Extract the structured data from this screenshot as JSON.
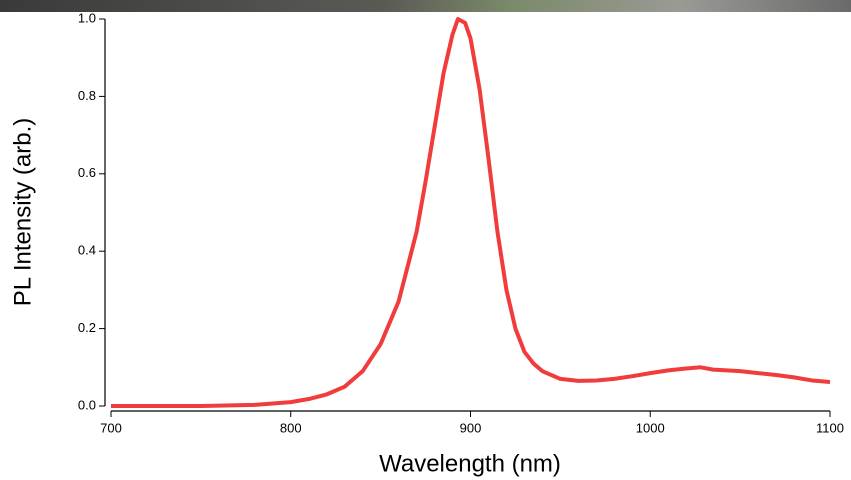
{
  "chart_data": {
    "type": "line",
    "xlabel": "Wavelength (nm)",
    "ylabel": "PL Intensity (arb.)",
    "xlim": [
      700,
      1100
    ],
    "ylim": [
      0,
      1
    ],
    "xticks": [
      700,
      800,
      900,
      1000,
      1100
    ],
    "yticks": [
      {
        "value": 0,
        "label": "0.0"
      },
      0.2,
      0.4,
      0.6,
      0.8,
      {
        "value": 1,
        "label": "1.0"
      }
    ],
    "x": [
      700,
      750,
      780,
      800,
      810,
      820,
      830,
      840,
      850,
      860,
      870,
      875,
      880,
      885,
      890,
      893,
      897,
      900,
      905,
      910,
      915,
      920,
      925,
      930,
      935,
      940,
      950,
      960,
      970,
      980,
      990,
      1000,
      1010,
      1020,
      1028,
      1035,
      1050,
      1060,
      1070,
      1080,
      1090,
      1100
    ],
    "series": [
      {
        "color": "#f03c3c",
        "values": [
          0.0,
          0.0,
          0.003,
          0.01,
          0.018,
          0.03,
          0.05,
          0.09,
          0.16,
          0.27,
          0.45,
          0.58,
          0.72,
          0.86,
          0.96,
          1.0,
          0.99,
          0.95,
          0.82,
          0.64,
          0.45,
          0.3,
          0.2,
          0.14,
          0.11,
          0.09,
          0.07,
          0.065,
          0.066,
          0.07,
          0.077,
          0.085,
          0.092,
          0.097,
          0.1,
          0.094,
          0.09,
          0.085,
          0.08,
          0.074,
          0.066,
          0.062
        ]
      }
    ]
  }
}
